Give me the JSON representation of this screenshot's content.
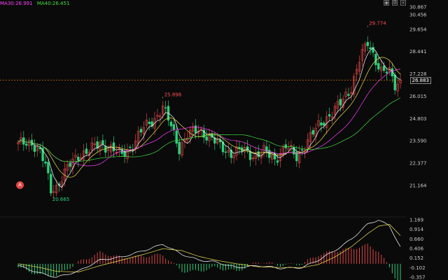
{
  "indicators": {
    "ma30_label": "MA30:26.991",
    "ma40_label": "MA40:26.451",
    "ma30_color": "#ff40ff",
    "ma40_color": "#40e040"
  },
  "side_marker": "A",
  "top_icons": [
    "eye-icon",
    "settings-icon",
    "close-icon"
  ],
  "colors": {
    "background": "#0a0a0a",
    "up": "#e04545",
    "down": "#2fd07a",
    "ma5": "#ffffff",
    "ma10": "#f0e050",
    "ma20": "#ff40ff",
    "ma60": "#40e040",
    "last_price_line": "#ff8c00",
    "dif": "#ffffff",
    "dea": "#f0e050"
  },
  "chart_data": [
    {
      "type": "candlestick",
      "y_ticks": [
        "30.867",
        "30.456",
        "29.654",
        "28.441",
        "27.228",
        "26.015",
        "24.803",
        "23.590",
        "22.377",
        "21.164"
      ],
      "ylim": [
        20.4,
        30.867
      ],
      "last_price": "26.883",
      "annotations": [
        {
          "label": "29.774",
          "value": 29.774,
          "index": 128
        },
        {
          "label": "25.898",
          "value": 25.898,
          "index": 53
        },
        {
          "label": "20.665",
          "value": 20.665,
          "index": 12
        }
      ],
      "key_closes": [
        [
          0,
          23.4
        ],
        [
          5,
          23.5
        ],
        [
          8,
          23.0
        ],
        [
          10,
          22.2
        ],
        [
          12,
          20.9
        ],
        [
          14,
          21.1
        ],
        [
          18,
          22.1
        ],
        [
          22,
          22.8
        ],
        [
          26,
          23.1
        ],
        [
          30,
          23.4
        ],
        [
          34,
          23.2
        ],
        [
          38,
          22.8
        ],
        [
          42,
          23.4
        ],
        [
          46,
          24.3
        ],
        [
          50,
          24.8
        ],
        [
          53,
          25.4
        ],
        [
          56,
          24.4
        ],
        [
          59,
          23.2
        ],
        [
          62,
          23.9
        ],
        [
          66,
          24.2
        ],
        [
          70,
          23.8
        ],
        [
          74,
          23.3
        ],
        [
          78,
          22.9
        ],
        [
          82,
          23.1
        ],
        [
          86,
          22.8
        ],
        [
          90,
          23.0
        ],
        [
          94,
          22.6
        ],
        [
          98,
          23.3
        ],
        [
          102,
          22.7
        ],
        [
          106,
          23.6
        ],
        [
          110,
          24.4
        ],
        [
          114,
          25.0
        ],
        [
          118,
          25.6
        ],
        [
          122,
          26.5
        ],
        [
          125,
          28.0
        ],
        [
          128,
          28.9
        ],
        [
          130,
          28.3
        ],
        [
          133,
          27.4
        ],
        [
          136,
          27.3
        ],
        [
          138,
          26.6
        ],
        [
          140,
          26.883
        ]
      ]
    },
    {
      "type": "line",
      "y_ticks": [
        "1.169",
        "0.914",
        "0.660",
        "0.406",
        "0.152",
        "-0.102",
        "-0.357"
      ],
      "ylim": [
        -0.357,
        1.169
      ],
      "series_colors": {
        "dif": "#ffffff",
        "dea": "#f0e050"
      },
      "key_values": [
        [
          0,
          -0.05,
          0.0
        ],
        [
          8,
          -0.25,
          -0.1
        ],
        [
          14,
          -0.36,
          -0.2
        ],
        [
          22,
          -0.2,
          -0.22
        ],
        [
          30,
          0.1,
          -0.05
        ],
        [
          38,
          0.18,
          0.1
        ],
        [
          46,
          0.35,
          0.25
        ],
        [
          53,
          0.52,
          0.4
        ],
        [
          60,
          0.25,
          0.35
        ],
        [
          66,
          0.1,
          0.2
        ],
        [
          72,
          0.05,
          0.1
        ],
        [
          80,
          -0.1,
          0.0
        ],
        [
          88,
          -0.05,
          -0.08
        ],
        [
          96,
          -0.12,
          -0.1
        ],
        [
          104,
          -0.1,
          -0.1
        ],
        [
          110,
          0.1,
          -0.02
        ],
        [
          116,
          0.35,
          0.18
        ],
        [
          122,
          0.65,
          0.45
        ],
        [
          128,
          1.05,
          0.8
        ],
        [
          132,
          1.169,
          1.0
        ],
        [
          136,
          1.0,
          1.05
        ],
        [
          140,
          0.45,
          0.75
        ]
      ]
    }
  ]
}
